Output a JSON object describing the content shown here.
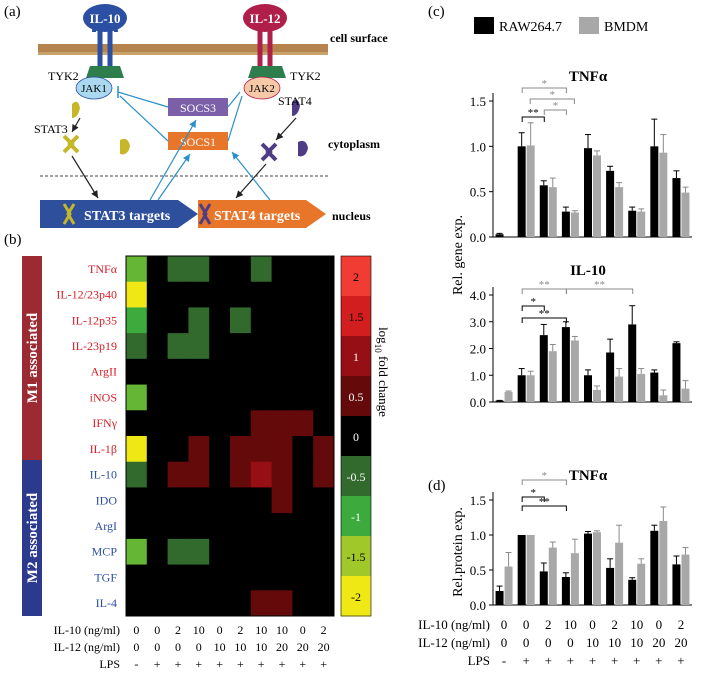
{
  "panel_labels": {
    "a": "(a)",
    "b": "(b)",
    "c": "(c)",
    "d": "(d)"
  },
  "pathway": {
    "il10": "IL-10",
    "il12": "IL-12",
    "cell_surface": "cell surface",
    "cytoplasm": "cytoplasm",
    "nucleus": "nucleus",
    "tyk2_left": "TYK2",
    "tyk2_right": "TYK2",
    "jak1": "JAK1",
    "jak2": "JAK2",
    "stat3": "STAT3",
    "stat4": "STAT4",
    "socs3": "SOCS3",
    "socs1": "SOCS1",
    "stat3_targets": "STAT3 targets",
    "stat4_targets": "STAT4 targets",
    "colors": {
      "il10": "#2b4fa2",
      "il12": "#b01e4a",
      "membrane": "#b5834e",
      "socs3": "#7b5fa8",
      "socs1": "#e8762a",
      "stat3_arrow": "#2d4f9c",
      "stat4_arrow": "#e8762a",
      "jak1": "#a9d8ef",
      "jak2": "#f6c9a8",
      "tyk2": "#2e7d4c",
      "inhibit": "#2a8fc9"
    }
  },
  "heatmap": {
    "group_m1": "M1 associated",
    "group_m2": "M2 associated",
    "rows_m1": [
      "TNFα",
      "IL-12/23p40",
      "IL-12p35",
      "IL-23p19",
      "ArgII",
      "iNOS",
      "IFNγ",
      "IL-1β"
    ],
    "rows_m2": [
      "IL-10",
      "IDO",
      "ArgI",
      "MCP",
      "TGF",
      "IL-4"
    ],
    "colorbar_ticks": [
      "2",
      "1.5",
      "1",
      "0.5",
      "0",
      "-0.5",
      "-1",
      "-1.5",
      "-2"
    ],
    "colorbar_label_pre": "log",
    "colorbar_label_sub": "10",
    "colorbar_label_post": " fold change",
    "cells": [
      [
        -1.2,
        0,
        -0.5,
        -0.5,
        0,
        0,
        -0.5,
        0,
        0,
        0
      ],
      [
        -2,
        0,
        0,
        0,
        0,
        0,
        0,
        0,
        0,
        0
      ],
      [
        -1,
        0,
        0,
        -0.5,
        0,
        -0.5,
        0,
        0,
        0,
        0
      ],
      [
        -0.5,
        0,
        -0.5,
        -0.5,
        0,
        0,
        0,
        0,
        0,
        0
      ],
      [
        0,
        0,
        0,
        0,
        0,
        0,
        0,
        0,
        0,
        0
      ],
      [
        -1.2,
        0,
        0,
        0,
        0,
        0,
        0,
        0,
        0,
        0
      ],
      [
        0,
        0,
        0,
        0,
        0,
        0,
        0.5,
        0.5,
        0.5,
        0
      ],
      [
        -2,
        0,
        0,
        0.5,
        0,
        0.5,
        0.5,
        0.5,
        0,
        0.5
      ],
      [
        -0.5,
        0,
        0.5,
        0.5,
        0,
        0.5,
        1,
        0.5,
        0,
        0.5
      ],
      [
        0,
        0,
        0,
        0,
        0,
        0,
        0,
        0.5,
        0,
        0
      ],
      [
        0,
        0,
        0,
        0,
        0,
        0,
        0,
        0,
        0,
        0
      ],
      [
        -1.2,
        0,
        -0.5,
        -0.5,
        0,
        0,
        0,
        0,
        0,
        0
      ],
      [
        0,
        0,
        0,
        0,
        0,
        0,
        0,
        0,
        0,
        0
      ],
      [
        0,
        0,
        0,
        0,
        0,
        0,
        0.5,
        0.5,
        0,
        0
      ]
    ],
    "xrow_labels": [
      "IL-10 (ng/ml)",
      "IL-12 (ng/ml)",
      "LPS"
    ],
    "il10_values": [
      "0",
      "0",
      "2",
      "10",
      "0",
      "2",
      "10",
      "10",
      "0",
      "2"
    ],
    "il12_values": [
      "0",
      "0",
      "0",
      "0",
      "10",
      "10",
      "10",
      "20",
      "20",
      "20"
    ],
    "lps_values": [
      "-",
      "+",
      "+",
      "+",
      "+",
      "+",
      "+",
      "+",
      "+",
      "+"
    ],
    "colors": {
      "m1_bar": "#9b2a33",
      "m2_bar": "#2b3a8c",
      "m1_text": "#d6202a",
      "m2_text": "#2b4fa2"
    }
  },
  "legend": {
    "items": [
      {
        "label": "RAW264.7",
        "color": "#000000"
      },
      {
        "label": "BMDM",
        "color": "#a8a8a8"
      }
    ]
  },
  "xaxis_labels": {
    "row_labels": [
      "IL-10 (ng/ml)",
      "IL-12 (ng/ml)",
      "LPS"
    ],
    "il10_values": [
      "0",
      "0",
      "2",
      "10",
      "0",
      "2",
      "10",
      "0",
      "2"
    ],
    "il12_values": [
      "0",
      "0",
      "0",
      "0",
      "10",
      "10",
      "10",
      "20",
      "20"
    ],
    "lps_values": [
      "-",
      "+",
      "+",
      "+",
      "+",
      "+",
      "+",
      "+",
      "+"
    ]
  },
  "chart_data": [
    {
      "type": "bar",
      "title": "TNFα",
      "ylabel": "Rel. gene exp.",
      "yticks": [
        "0.0",
        "0.5",
        "1.0",
        "1.5"
      ],
      "ylim": [
        0,
        1.5
      ],
      "series": [
        {
          "name": "RAW264.7",
          "values": [
            0.03,
            1.0,
            0.57,
            0.28,
            0.98,
            0.73,
            0.29,
            1.0,
            0.65
          ],
          "errors": [
            0.01,
            0.15,
            0.05,
            0.05,
            0.15,
            0.05,
            0.04,
            0.3,
            0.08
          ]
        },
        {
          "name": "BMDM",
          "values": [
            0.0,
            1.01,
            0.55,
            0.27,
            0.9,
            0.55,
            0.28,
            0.93,
            0.49
          ],
          "errors": [
            0.0,
            0.25,
            0.1,
            0.02,
            0.05,
            0.05,
            0.03,
            0.2,
            0.06
          ]
        }
      ],
      "significance": [
        "*",
        "*",
        "**",
        "*"
      ]
    },
    {
      "type": "bar",
      "title": "IL-10",
      "ylabel": "Rel. gene exp.",
      "yticks": [
        "0.0",
        "1.0",
        "2.0",
        "3.0",
        "4.0"
      ],
      "ylim": [
        0,
        4.0
      ],
      "series": [
        {
          "name": "RAW264.7",
          "values": [
            0.05,
            1.0,
            2.5,
            2.8,
            1.0,
            1.85,
            2.9,
            1.1,
            2.2
          ],
          "errors": [
            0.01,
            0.25,
            0.4,
            0.2,
            0.2,
            0.5,
            0.7,
            0.1,
            0.05
          ]
        },
        {
          "name": "BMDM",
          "values": [
            0.38,
            1.0,
            1.9,
            2.3,
            0.45,
            0.95,
            1.05,
            0.25,
            0.5
          ],
          "errors": [
            0.03,
            0.15,
            0.25,
            0.15,
            0.15,
            0.3,
            0.2,
            0.2,
            0.3
          ]
        }
      ],
      "significance": [
        "**",
        "*",
        "**",
        "**"
      ]
    },
    {
      "type": "bar",
      "title": "TNFα",
      "ylabel": "Rel.protein exp.",
      "yticks": [
        "0.0",
        "0.5",
        "1.0",
        "1.5"
      ],
      "ylim": [
        0,
        1.5
      ],
      "series": [
        {
          "name": "RAW264.7",
          "values": [
            0.2,
            1.0,
            0.48,
            0.4,
            1.02,
            0.53,
            0.36,
            1.06,
            0.58
          ],
          "errors": [
            0.07,
            0.0,
            0.12,
            0.06,
            0.03,
            0.13,
            0.03,
            0.08,
            0.12
          ]
        },
        {
          "name": "BMDM",
          "values": [
            0.55,
            1.0,
            0.82,
            0.74,
            1.04,
            0.89,
            0.59,
            1.2,
            0.72
          ],
          "errors": [
            0.2,
            0.0,
            0.08,
            0.2,
            0.02,
            0.25,
            0.07,
            0.2,
            0.1
          ]
        }
      ],
      "significance": [
        "*",
        "*",
        "**"
      ]
    }
  ]
}
